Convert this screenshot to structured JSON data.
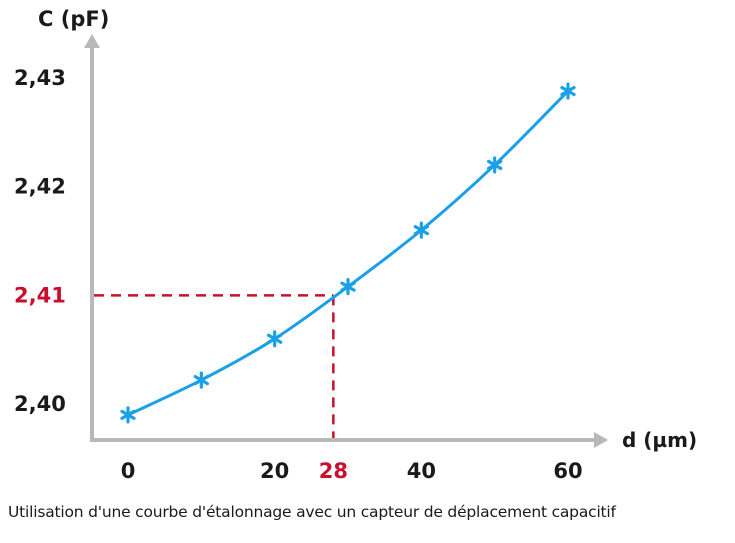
{
  "chart_data": {
    "type": "line",
    "title": "",
    "xlabel": "d (µm)",
    "ylabel": "C (pF)",
    "x_ticks": [
      "0",
      "20",
      "40",
      "60"
    ],
    "y_ticks": [
      "2,40",
      "2,42",
      "2,43"
    ],
    "xlim": [
      0,
      60
    ],
    "ylim": [
      2.4,
      2.43
    ],
    "grid": false,
    "legend": "none",
    "colors": {
      "curve": "#1aa0e6",
      "axis": "#b8b8b8",
      "highlight": "#c8102e",
      "text": "#1a1a1a"
    },
    "series": [
      {
        "x": [
          0,
          10,
          20,
          30,
          40,
          50,
          60
        ],
        "y": [
          2.399,
          2.4022,
          2.406,
          2.4108,
          2.416,
          2.422,
          2.4288
        ]
      }
    ],
    "annotation": {
      "x": 28,
      "y": 2.41,
      "x_label": "28",
      "y_label": "2,41"
    }
  },
  "caption": "Utilisation d'une courbe d'étalonnage avec un capteur de déplacement capacitif"
}
